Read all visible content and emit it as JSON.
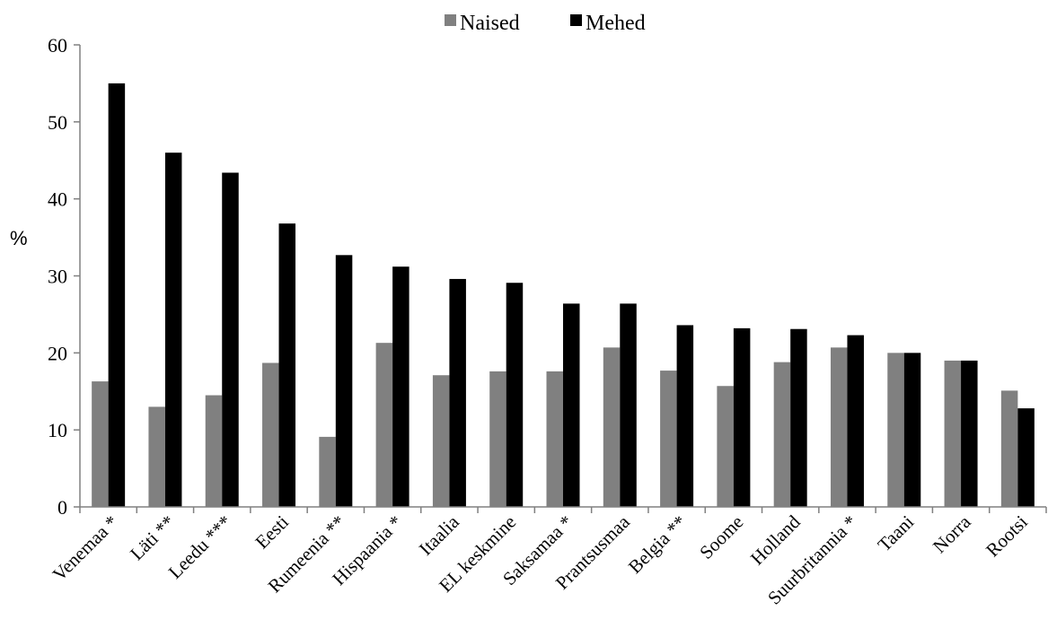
{
  "chart_data": {
    "type": "bar",
    "categories": [
      "Venemaa *",
      "Läti **",
      "Leedu ***",
      "Eesti",
      "Rumeenia **",
      "Hispaania *",
      "Itaalia",
      "EL keskmine",
      "Saksamaa *",
      "Prantsusmaa",
      "Belgia **",
      "Soome",
      "Holland",
      "Suurbritannia *",
      "Taani",
      "Norra",
      "Rootsi"
    ],
    "series": [
      {
        "name": "Naised",
        "color": "#808080",
        "values": [
          16.3,
          13.0,
          14.5,
          18.7,
          9.1,
          21.3,
          17.1,
          17.6,
          17.6,
          20.7,
          17.7,
          15.7,
          18.8,
          20.7,
          20.0,
          19.0,
          15.1
        ]
      },
      {
        "name": "Mehed",
        "color": "#000000",
        "values": [
          55.0,
          46.0,
          43.4,
          36.8,
          32.7,
          31.2,
          29.6,
          29.1,
          26.4,
          26.4,
          23.6,
          23.2,
          23.1,
          22.3,
          20.0,
          19.0,
          12.8
        ]
      }
    ],
    "title": "",
    "xlabel": "",
    "ylabel": "%",
    "ylim": [
      0,
      60
    ],
    "yticks": [
      "0",
      "10",
      "20",
      "30",
      "40",
      "50",
      "60"
    ],
    "grid": false,
    "legend_position": "top-center"
  }
}
